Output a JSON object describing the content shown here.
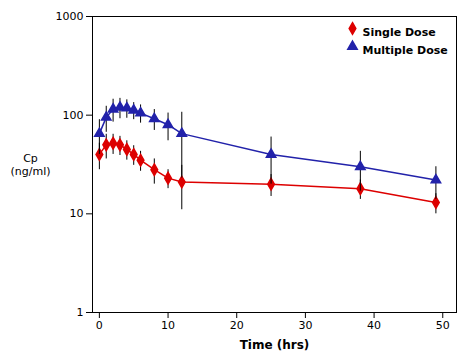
{
  "chart_data": {
    "type": "line",
    "xlabel": "Time (hrs)",
    "ylabel": "Cp\n(ng/ml)",
    "x": [
      0,
      1,
      2,
      3,
      4,
      5,
      6,
      8,
      10,
      12,
      25,
      38,
      49
    ],
    "series": [
      {
        "name": "Single Dose",
        "color": "#dd0000",
        "marker": "diamond",
        "line_style": "solid",
        "values": [
          40,
          50,
          52,
          50,
          45,
          40,
          35,
          28,
          23,
          21,
          20,
          18,
          13
        ],
        "yerr_low": [
          12,
          14,
          12,
          11,
          10,
          9,
          8,
          8,
          5,
          10,
          5,
          4,
          3
        ],
        "yerr_high": [
          12,
          14,
          12,
          11,
          10,
          9,
          8,
          8,
          5,
          10,
          5,
          4,
          3
        ]
      },
      {
        "name": "Multiple Dose",
        "color": "#2222aa",
        "marker": "triangle",
        "line_style": "solid",
        "values": [
          65,
          95,
          115,
          120,
          118,
          112,
          105,
          92,
          80,
          65,
          40,
          30,
          22
        ],
        "yerr_low": [
          25,
          28,
          30,
          28,
          25,
          22,
          22,
          22,
          25,
          42,
          20,
          13,
          8
        ],
        "yerr_high": [
          25,
          28,
          30,
          28,
          25,
          22,
          22,
          22,
          25,
          42,
          20,
          13,
          8
        ]
      }
    ],
    "xlim": [
      -1,
      52
    ],
    "ylim": [
      1,
      1000
    ],
    "xticks": [
      0,
      10,
      20,
      30,
      40,
      50
    ],
    "yticks": [
      1,
      10,
      100,
      1000
    ],
    "log": "y",
    "grid": false,
    "legend": "upper right"
  }
}
